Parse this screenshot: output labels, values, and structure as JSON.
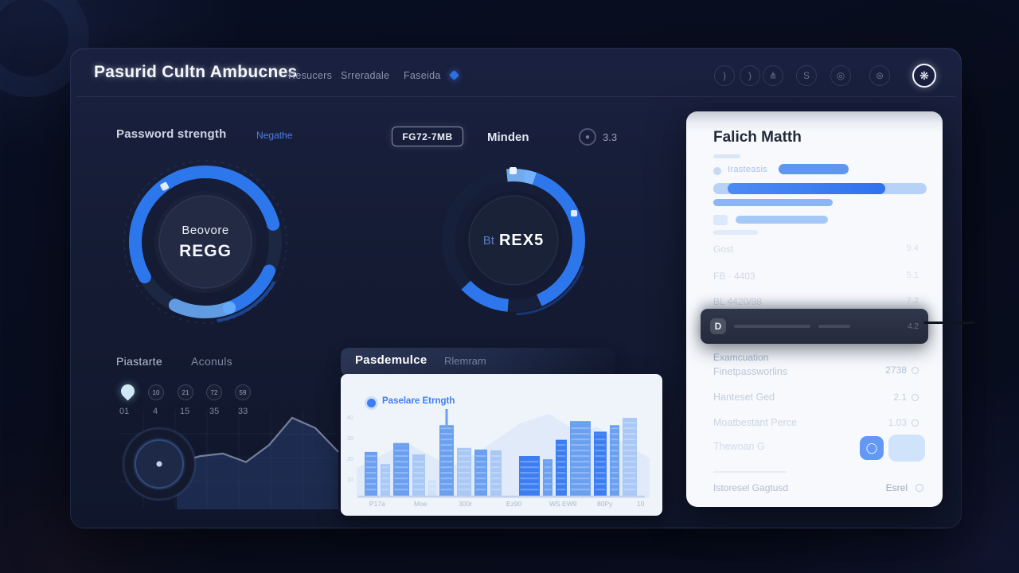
{
  "header": {
    "title": "Pasurid Cultn Ambucnes",
    "nav": [
      {
        "label": "Resucers"
      },
      {
        "label": "Srreradale"
      },
      {
        "label": "Faseida"
      }
    ],
    "icons": [
      {
        "name": "crescent-icon",
        "glyph": ")"
      },
      {
        "name": "crescent-icon-2",
        "glyph": ")"
      },
      {
        "name": "stats-icon",
        "glyph": "⋔"
      },
      {
        "name": "currency-icon",
        "glyph": "S"
      },
      {
        "name": "target-icon",
        "glyph": "◎"
      },
      {
        "name": "settings-icon",
        "glyph": "⊜"
      },
      {
        "name": "logo-badge",
        "glyph": "❋"
      }
    ]
  },
  "password": {
    "title": "Password strength",
    "link": "Negathe",
    "center_line1": "Beovore",
    "center_line2": "REGG"
  },
  "minden": {
    "badge": "FG72-7MB",
    "title": "Minden",
    "score": "3.3",
    "center_prefix": "Bt",
    "center_value": "REX5"
  },
  "falich": {
    "title": "Falich Matth",
    "tag": "Irasteasis",
    "faint_rows": [
      {
        "label": "Gost",
        "value": "9.4"
      },
      {
        "label": "FB · 4403",
        "value": "5.1"
      },
      {
        "label": "BL 4420/98",
        "value": "7.2"
      }
    ],
    "dark_bar": {
      "logo": "D",
      "value": "4.2"
    },
    "form": [
      {
        "label": "Examcuation",
        "sub": "Finetpassworlins",
        "value": "2738"
      },
      {
        "label": "Hanteset Ged",
        "sub": "",
        "value": "2.1"
      },
      {
        "label": "Moatbestant Perce",
        "sub": "",
        "value": "1.03"
      }
    ],
    "actions_label": "Thewoan G",
    "button_glyph": "◯",
    "footer_left": "Istoresel Gagtusd",
    "footer_right": "Esrel"
  },
  "piastarte": {
    "title_a": "Piastarte",
    "title_b": "Aconuls",
    "badges": [
      "10",
      "21",
      "72",
      "59"
    ],
    "numbers": [
      "01",
      "4",
      "15",
      "35",
      "33"
    ]
  },
  "pasdemulce": {
    "title_a": "Pasdemulce",
    "title_b": "Rlemram",
    "legend": "Paselare Etrngth",
    "x_labels": [
      "P17a",
      "Moe",
      "300r",
      "Ez90",
      "WS EW9",
      "80Py",
      "10"
    ],
    "y_labels": [
      "40",
      "30",
      "20",
      "10"
    ]
  },
  "chart_data": [
    {
      "type": "donut",
      "title": "Password strength",
      "center_text": [
        "Beovore",
        "REGG"
      ],
      "percent": 78,
      "ring_color": "#2e7bf6",
      "track_color": "#1c2742"
    },
    {
      "type": "donut",
      "title": "Minden",
      "center_text": [
        "Bt",
        "REX5"
      ],
      "score": 3.3,
      "percent": 62,
      "ring_color": "#2e7bf6",
      "track_color": "#16203a"
    },
    {
      "type": "area",
      "title": "Piastarte Aconuls",
      "values": [
        47,
        55,
        58,
        48,
        68,
        100,
        88,
        60
      ],
      "ylim": [
        0,
        100
      ],
      "grid": true,
      "line_color": "#6b7795",
      "fill_color": "rgba(60,95,170,0.28)"
    },
    {
      "type": "bar",
      "title": "Paselare Etrngth",
      "x_labels": [
        "P17a",
        "Moe",
        "300r",
        "Ez90",
        "WS EW9",
        "80Py",
        "10"
      ],
      "ylim": [
        0,
        100
      ],
      "bars": [
        {
          "v": 55,
          "w": 16,
          "s": 1
        },
        {
          "v": 40,
          "w": 12,
          "s": 2
        },
        {
          "v": 66,
          "w": 20,
          "s": 1
        },
        {
          "v": 52,
          "w": 16,
          "s": 2
        },
        {
          "v": 20,
          "w": 10,
          "s": 3
        },
        {
          "v": 88,
          "w": 18,
          "s": 1,
          "spire": true
        },
        {
          "v": 60,
          "w": 18,
          "s": 2
        },
        {
          "v": 58,
          "w": 16,
          "s": 1
        },
        {
          "v": 57,
          "w": 14,
          "s": 2
        },
        {
          "v": 50,
          "w": 26,
          "s": 0
        },
        {
          "v": 46,
          "w": 12,
          "s": 1
        },
        {
          "v": 70,
          "w": 14,
          "s": 0
        },
        {
          "v": 93,
          "w": 26,
          "s": 1
        },
        {
          "v": 80,
          "w": 16,
          "s": 0
        },
        {
          "v": 88,
          "w": 12,
          "s": 1
        },
        {
          "v": 97,
          "w": 18,
          "s": 2
        }
      ],
      "shade_colors": [
        "#3c7ef2",
        "#6ba0f0",
        "#a9c8f6",
        "#cfe0f9"
      ]
    }
  ]
}
